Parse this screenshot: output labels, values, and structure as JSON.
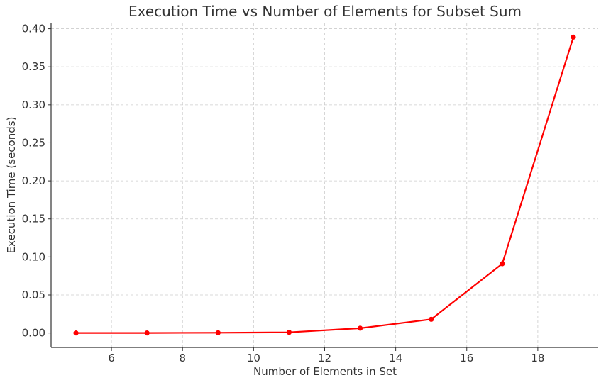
{
  "chart_data": {
    "type": "line",
    "title": "Execution Time vs Number of Elements for Subset Sum",
    "xlabel": "Number of Elements in Set",
    "ylabel": "Execution Time (seconds)",
    "xlim": [
      4.3,
      19.7
    ],
    "ylim": [
      -0.019,
      0.408
    ],
    "xticks": [
      6,
      8,
      10,
      12,
      14,
      16,
      18
    ],
    "yticks": [
      0.0,
      0.05,
      0.1,
      0.15,
      0.2,
      0.25,
      0.3,
      0.35,
      0.4
    ],
    "grid": true,
    "series": [
      {
        "color": "#ff0000",
        "x": [
          5,
          7,
          9,
          11,
          13,
          15,
          17,
          19
        ],
        "y": [
          0.0,
          0.0,
          0.0003,
          0.0009,
          0.0063,
          0.018,
          0.091,
          0.389
        ]
      }
    ]
  }
}
